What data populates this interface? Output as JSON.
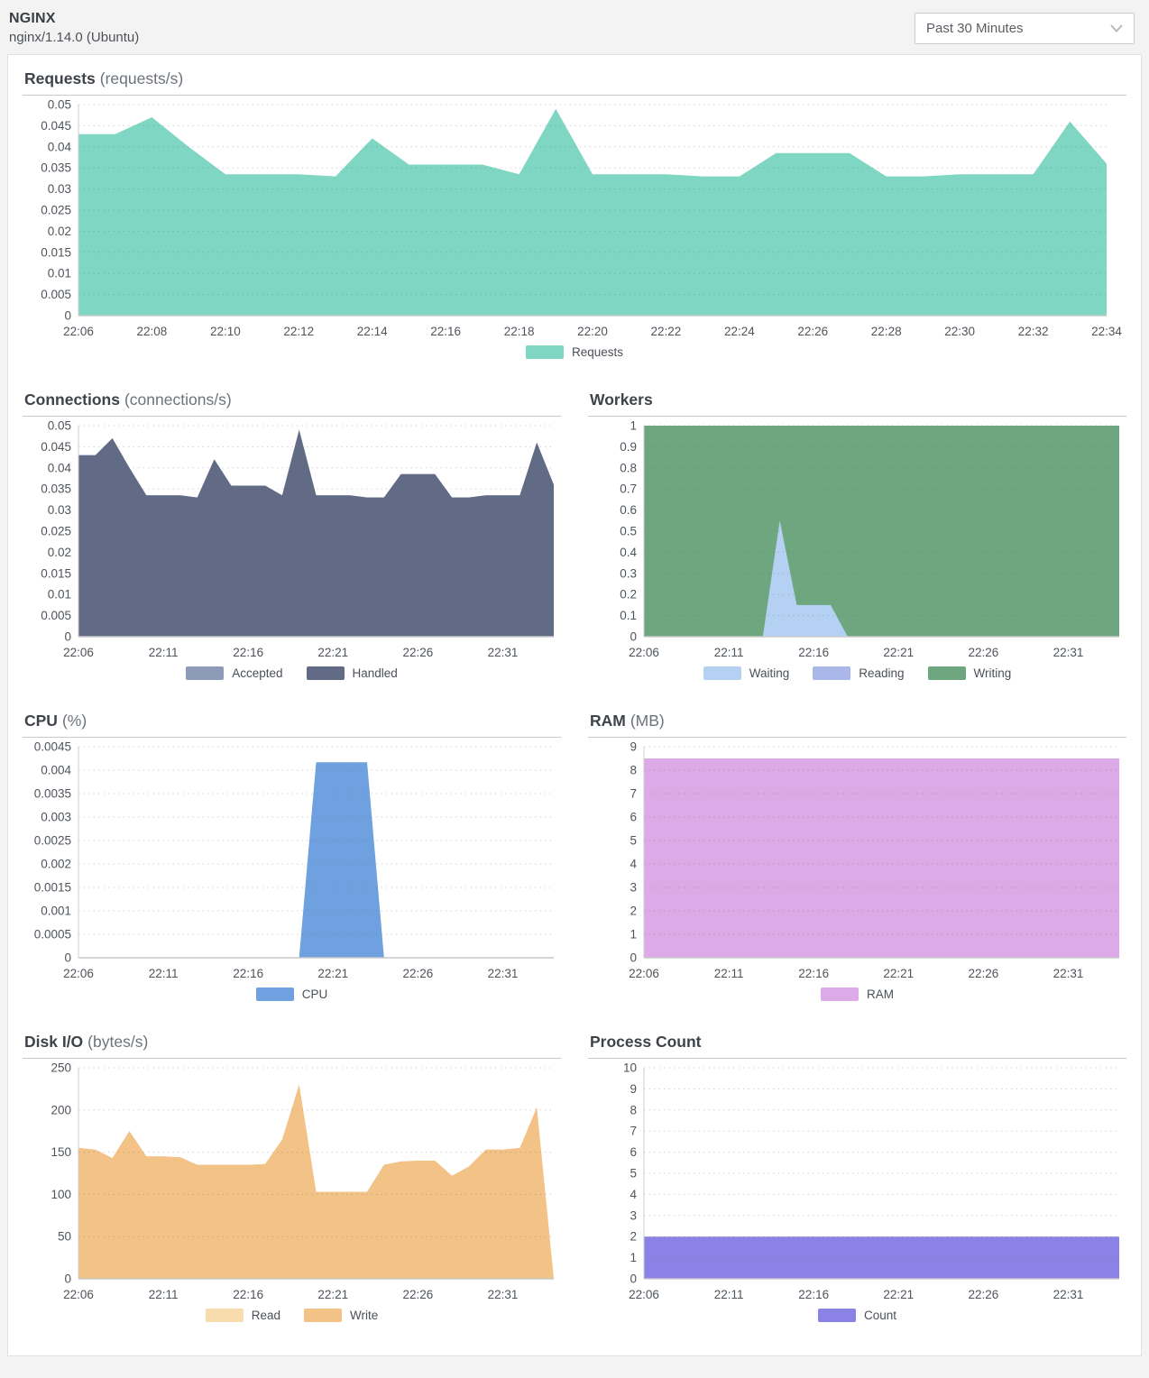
{
  "header": {
    "app_title": "NGINX",
    "app_subtitle": "nginx/1.14.0 (Ubuntu)"
  },
  "controls": {
    "time_range_selected": "Past 30 Minutes"
  },
  "chart_data": [
    {
      "id": "requests",
      "type": "area",
      "layout": "full",
      "title": "Requests",
      "unit": "(requests/s)",
      "x_start": "22:06",
      "x_end": "22:34",
      "n_points": 29,
      "ylim": [
        0,
        0.05
      ],
      "grid": "dotted",
      "legend_position": "bottom",
      "y_ticks": [
        "0.05",
        "0.045",
        "0.04",
        "0.035",
        "0.03",
        "0.025",
        "0.02",
        "0.015",
        "0.01",
        "0.005",
        "0"
      ],
      "x_ticks": {
        "labels": [
          "22:06",
          "22:08",
          "22:10",
          "22:12",
          "22:14",
          "22:16",
          "22:18",
          "22:20",
          "22:22",
          "22:24",
          "22:26",
          "22:28",
          "22:30",
          "22:32",
          "22:34"
        ],
        "indices": [
          0,
          2,
          4,
          6,
          8,
          10,
          12,
          14,
          16,
          18,
          20,
          22,
          24,
          26,
          28
        ]
      },
      "series": [
        {
          "name": "Requests",
          "color": "#7fd6c3",
          "values": [
            0.043,
            0.043,
            0.047,
            0.04,
            0.0335,
            0.0335,
            0.0335,
            0.033,
            0.042,
            0.0358,
            0.0358,
            0.0358,
            0.0335,
            0.049,
            0.0335,
            0.0335,
            0.0335,
            0.033,
            0.033,
            0.0385,
            0.0385,
            0.0385,
            0.033,
            0.033,
            0.0335,
            0.0335,
            0.0335,
            0.046,
            0.036
          ]
        }
      ]
    },
    {
      "id": "connections",
      "type": "area",
      "layout": "half",
      "title": "Connections",
      "unit": "(connections/s)",
      "x_start": "22:06",
      "x_end": "22:34",
      "n_points": 29,
      "ylim": [
        0,
        0.05
      ],
      "grid": "dotted",
      "legend_position": "bottom",
      "draw_order": [
        0,
        1
      ],
      "y_ticks": [
        "0.05",
        "0.045",
        "0.04",
        "0.035",
        "0.03",
        "0.025",
        "0.02",
        "0.015",
        "0.01",
        "0.005",
        "0"
      ],
      "x_ticks": {
        "labels": [
          "22:06",
          "22:11",
          "22:16",
          "22:21",
          "22:26",
          "22:31"
        ],
        "indices": [
          0,
          5,
          10,
          15,
          20,
          25
        ]
      },
      "series": [
        {
          "name": "Accepted",
          "color": "#8e9bb8",
          "values": [
            0.043,
            0.043,
            0.047,
            0.04,
            0.0335,
            0.0335,
            0.0335,
            0.033,
            0.042,
            0.0358,
            0.0358,
            0.0358,
            0.0335,
            0.049,
            0.0335,
            0.0335,
            0.0335,
            0.033,
            0.033,
            0.0385,
            0.0385,
            0.0385,
            0.033,
            0.033,
            0.0335,
            0.0335,
            0.0335,
            0.046,
            0.036
          ]
        },
        {
          "name": "Handled",
          "color": "#616b86",
          "values": [
            0.043,
            0.043,
            0.047,
            0.04,
            0.0335,
            0.0335,
            0.0335,
            0.033,
            0.042,
            0.0358,
            0.0358,
            0.0358,
            0.0335,
            0.049,
            0.0335,
            0.0335,
            0.0335,
            0.033,
            0.033,
            0.0385,
            0.0385,
            0.0385,
            0.033,
            0.033,
            0.0335,
            0.0335,
            0.0335,
            0.046,
            0.036
          ]
        }
      ]
    },
    {
      "id": "workers",
      "type": "area",
      "layout": "half",
      "title": "Workers",
      "unit": "",
      "x_start": "22:06",
      "x_end": "22:34",
      "n_points": 29,
      "ylim": [
        0,
        1
      ],
      "grid": "dotted",
      "legend_position": "bottom",
      "draw_order": [
        2,
        1,
        0
      ],
      "y_ticks": [
        "1",
        "0.9",
        "0.8",
        "0.7",
        "0.6",
        "0.5",
        "0.4",
        "0.3",
        "0.2",
        "0.1",
        "0"
      ],
      "x_ticks": {
        "labels": [
          "22:06",
          "22:11",
          "22:16",
          "22:21",
          "22:26",
          "22:31"
        ],
        "indices": [
          0,
          5,
          10,
          15,
          20,
          25
        ]
      },
      "series": [
        {
          "name": "Waiting",
          "color": "#b4d1f4",
          "values": [
            0,
            0,
            0,
            0,
            0,
            0,
            0,
            0,
            0.55,
            0.15,
            0.15,
            0.15,
            0,
            0,
            0,
            0,
            0,
            0,
            0,
            0,
            0,
            0,
            0,
            0,
            0,
            0,
            0,
            0,
            0
          ]
        },
        {
          "name": "Reading",
          "color": "#a9b8e8",
          "values": [
            0,
            0,
            0,
            0,
            0,
            0,
            0,
            0,
            0,
            0,
            0,
            0,
            0,
            0,
            0,
            0,
            0,
            0,
            0,
            0,
            0,
            0,
            0,
            0,
            0,
            0,
            0,
            0,
            0
          ]
        },
        {
          "name": "Writing",
          "color": "#6ea67f",
          "values": [
            1,
            1,
            1,
            1,
            1,
            1,
            1,
            1,
            1,
            1,
            1,
            1,
            1,
            1,
            1,
            1,
            1,
            1,
            1,
            1,
            1,
            1,
            1,
            1,
            1,
            1,
            1,
            1,
            1
          ]
        }
      ]
    },
    {
      "id": "cpu",
      "type": "area",
      "layout": "half",
      "title": "CPU",
      "unit": "(%)",
      "x_start": "22:06",
      "x_end": "22:34",
      "n_points": 29,
      "ylim": [
        0,
        0.0045
      ],
      "grid": "dotted",
      "legend_position": "bottom",
      "y_ticks": [
        "0.0045",
        "0.004",
        "0.0035",
        "0.003",
        "0.0025",
        "0.002",
        "0.0015",
        "0.001",
        "0.0005",
        "0"
      ],
      "x_ticks": {
        "labels": [
          "22:06",
          "22:11",
          "22:16",
          "22:21",
          "22:26",
          "22:31"
        ],
        "indices": [
          0,
          5,
          10,
          15,
          20,
          25
        ]
      },
      "series": [
        {
          "name": "CPU",
          "color": "#6fa1e0",
          "values": [
            0,
            0,
            0,
            0,
            0,
            0,
            0,
            0,
            0,
            0,
            0,
            0,
            0,
            0,
            0.00417,
            0.00417,
            0.00417,
            0.00417,
            0,
            0,
            0,
            0,
            0,
            0,
            0,
            0,
            0,
            0,
            0
          ]
        }
      ]
    },
    {
      "id": "ram",
      "type": "area",
      "layout": "half",
      "title": "RAM",
      "unit": "(MB)",
      "x_start": "22:06",
      "x_end": "22:34",
      "n_points": 29,
      "ylim": [
        0,
        9
      ],
      "grid": "dotted",
      "legend_position": "bottom",
      "y_ticks": [
        "9",
        "8",
        "7",
        "6",
        "5",
        "4",
        "3",
        "2",
        "1",
        "0"
      ],
      "x_ticks": {
        "labels": [
          "22:06",
          "22:11",
          "22:16",
          "22:21",
          "22:26",
          "22:31"
        ],
        "indices": [
          0,
          5,
          10,
          15,
          20,
          25
        ]
      },
      "series": [
        {
          "name": "RAM",
          "color": "#dcaae6",
          "values": [
            8.5,
            8.5,
            8.5,
            8.5,
            8.5,
            8.5,
            8.5,
            8.5,
            8.5,
            8.5,
            8.5,
            8.5,
            8.5,
            8.5,
            8.5,
            8.5,
            8.5,
            8.5,
            8.5,
            8.5,
            8.5,
            8.5,
            8.5,
            8.5,
            8.5,
            8.5,
            8.5,
            8.5,
            8.5
          ]
        }
      ]
    },
    {
      "id": "disk-io",
      "type": "area",
      "layout": "half",
      "title": "Disk I/O",
      "unit": "(bytes/s)",
      "x_start": "22:06",
      "x_end": "22:34",
      "n_points": 29,
      "ylim": [
        0,
        250
      ],
      "grid": "dotted",
      "legend_position": "bottom",
      "draw_order": [
        0,
        1
      ],
      "y_ticks": [
        "250",
        "200",
        "150",
        "100",
        "50",
        "0"
      ],
      "x_ticks": {
        "labels": [
          "22:06",
          "22:11",
          "22:16",
          "22:21",
          "22:26",
          "22:31"
        ],
        "indices": [
          0,
          5,
          10,
          15,
          20,
          25
        ]
      },
      "series": [
        {
          "name": "Read",
          "color": "#f8dcae",
          "values": [
            155,
            153,
            143,
            175,
            145,
            145,
            144,
            135,
            135,
            135,
            135,
            136,
            165,
            230,
            103,
            103,
            103,
            103,
            135,
            139,
            140,
            140,
            122,
            133,
            153,
            153,
            155,
            203,
            0
          ]
        },
        {
          "name": "Write",
          "color": "#f2c286",
          "values": [
            155,
            153,
            143,
            175,
            145,
            145,
            144,
            135,
            135,
            135,
            135,
            136,
            165,
            230,
            103,
            103,
            103,
            103,
            135,
            139,
            140,
            140,
            122,
            133,
            153,
            153,
            155,
            203,
            0
          ]
        }
      ]
    },
    {
      "id": "process-count",
      "type": "area",
      "layout": "half",
      "title": "Process Count",
      "unit": "",
      "x_start": "22:06",
      "x_end": "22:34",
      "n_points": 29,
      "ylim": [
        0,
        10
      ],
      "grid": "dotted",
      "legend_position": "bottom",
      "y_ticks": [
        "10",
        "9",
        "8",
        "7",
        "6",
        "5",
        "4",
        "3",
        "2",
        "1",
        "0"
      ],
      "x_ticks": {
        "labels": [
          "22:06",
          "22:11",
          "22:16",
          "22:21",
          "22:26",
          "22:31"
        ],
        "indices": [
          0,
          5,
          10,
          15,
          20,
          25
        ]
      },
      "series": [
        {
          "name": "Count",
          "color": "#8b82e6",
          "values": [
            2,
            2,
            2,
            2,
            2,
            2,
            2,
            2,
            2,
            2,
            2,
            2,
            2,
            2,
            2,
            2,
            2,
            2,
            2,
            2,
            2,
            2,
            2,
            2,
            2,
            2,
            2,
            2,
            2
          ]
        }
      ]
    }
  ]
}
